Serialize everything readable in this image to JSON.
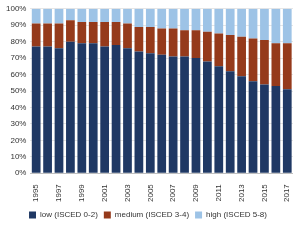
{
  "chart_data": {
    "type": "bar",
    "stacked": true,
    "grid": true,
    "legend": "bottom",
    "categories": [
      "1995",
      null,
      "1997",
      null,
      "1999",
      null,
      "2001",
      null,
      "2003",
      null,
      "2005",
      null,
      "2007",
      null,
      "2009",
      null,
      "2011",
      null,
      "2013",
      null,
      "2015",
      null,
      "2017"
    ],
    "series": [
      {
        "name": "low (ISCED 0-2)",
        "color": "#1f3864",
        "values": [
          77,
          77,
          76,
          80,
          79,
          79,
          77,
          78,
          76,
          74,
          73,
          72,
          71,
          71,
          70,
          68,
          65,
          62,
          59,
          56,
          54,
          53,
          51
        ]
      },
      {
        "name": "medium (ISCED 3-4)",
        "color": "#953a1b",
        "values": [
          14,
          14,
          15,
          13,
          13,
          13,
          15,
          14,
          15,
          15,
          16,
          16,
          17,
          16,
          17,
          18,
          20,
          22,
          24,
          26,
          27,
          26,
          28
        ]
      },
      {
        "name": "high (ISCED 5-8)",
        "color": "#9dc3e6",
        "values": [
          9,
          9,
          9,
          7,
          8,
          8,
          8,
          8,
          9,
          11,
          11,
          12,
          12,
          13,
          13,
          14,
          15,
          16,
          17,
          18,
          19,
          21,
          21
        ]
      }
    ],
    "ylim": [
      0,
      100
    ],
    "yticks": [
      {
        "value": 0,
        "label": "0%"
      },
      {
        "value": 10,
        "label": "10%"
      },
      {
        "value": 20,
        "label": "20%"
      },
      {
        "value": 30,
        "label": "30%"
      },
      {
        "value": 40,
        "label": "40%"
      },
      {
        "value": 50,
        "label": "50%"
      },
      {
        "value": 60,
        "label": "60%"
      },
      {
        "value": 70,
        "label": "70%"
      },
      {
        "value": 80,
        "label": "80%"
      },
      {
        "value": 90,
        "label": "90%"
      },
      {
        "value": 100,
        "label": "100%"
      }
    ]
  }
}
